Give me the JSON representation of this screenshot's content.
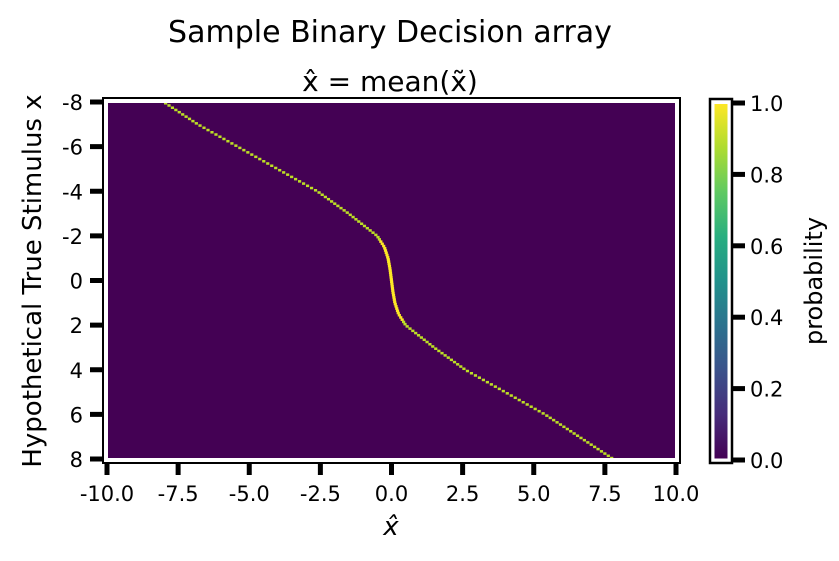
{
  "chart_data": {
    "type": "heatmap",
    "title": "Sample Binary Decision array",
    "subtitle": "x̂ = mean(x̃)",
    "xlabel": "x̂",
    "ylabel": "Hypothetical True Stimulus x",
    "xlim": [
      -10.0,
      10.0
    ],
    "ylim": [
      8,
      -8
    ],
    "y_axis_inverted": true,
    "x_ticks": [
      -10.0,
      -7.5,
      -5.0,
      -2.5,
      0.0,
      2.5,
      5.0,
      7.5,
      10.0
    ],
    "x_tick_labels": [
      "-10.0",
      "-7.5",
      "-5.0",
      "-2.5",
      "0.0",
      "2.5",
      "5.0",
      "7.5",
      "10.0"
    ],
    "y_ticks": [
      -8,
      -6,
      -4,
      -2,
      0,
      2,
      4,
      6,
      8
    ],
    "y_tick_labels": [
      "-8",
      "-6",
      "-4",
      "-2",
      "0",
      "2",
      "4",
      "6",
      "8"
    ],
    "colorbar": {
      "label": "probability",
      "range": [
        0.0,
        1.0
      ],
      "ticks": [
        0.0,
        0.2,
        0.4,
        0.6,
        0.8,
        1.0
      ],
      "tick_labels": [
        "0.0",
        "0.2",
        "0.4",
        "0.6",
        "0.8",
        "1.0"
      ],
      "colormap": "viridis"
    },
    "background_value": 0.0,
    "curve_value": 1.0,
    "curve": {
      "description_points_x_true_to_xhat": true,
      "x_true": [
        -8.0,
        -7.0,
        -6.0,
        -5.0,
        -4.0,
        -3.0,
        -2.5,
        -2.0,
        -1.5,
        -1.0,
        -0.5,
        0.0,
        0.5,
        1.0,
        1.5,
        2.0,
        2.5,
        3.0,
        4.0,
        5.0,
        6.0,
        7.0,
        8.0
      ],
      "x_hat": [
        -8.0,
        -6.8,
        -5.4,
        -4.0,
        -2.6,
        -1.5,
        -1.0,
        -0.5,
        -0.25,
        -0.12,
        -0.05,
        0.0,
        0.05,
        0.12,
        0.25,
        0.5,
        1.0,
        1.5,
        2.6,
        4.0,
        5.4,
        6.6,
        7.8
      ]
    },
    "grid": false,
    "colors": {
      "background": "#440154",
      "curve": "#bddf26",
      "curve_peak": "#fde725"
    }
  }
}
